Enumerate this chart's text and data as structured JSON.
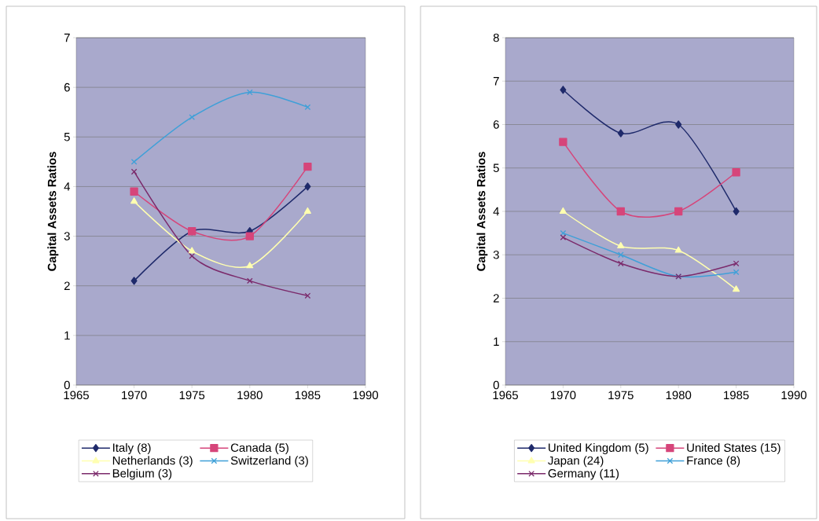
{
  "chart_data": [
    {
      "type": "line",
      "ylabel": "Capital Assets Ratios",
      "x": [
        1970,
        1975,
        1980,
        1985
      ],
      "xlim": [
        1965,
        1990
      ],
      "xticks": [
        1965,
        1970,
        1975,
        1980,
        1985,
        1990
      ],
      "ylim": [
        0,
        7
      ],
      "yticks": [
        0,
        1,
        2,
        3,
        4,
        5,
        6,
        7
      ],
      "grid": "y",
      "legend": "bottom",
      "line_style": "solid",
      "series": [
        {
          "name": "Italy (8)",
          "color": "#1f2a6b",
          "marker": "diamond",
          "values": [
            2.1,
            3.1,
            3.1,
            4.0
          ]
        },
        {
          "name": "Canada (5)",
          "color": "#d6457a",
          "marker": "square",
          "values": [
            3.9,
            3.1,
            3.0,
            4.4
          ]
        },
        {
          "name": "Netherlands (3)",
          "color": "#ffffb0",
          "marker": "triangle",
          "values": [
            3.7,
            2.7,
            2.4,
            3.5
          ]
        },
        {
          "name": "Switzerland (3)",
          "color": "#3fa0d8",
          "marker": "cross",
          "values": [
            4.5,
            5.4,
            5.9,
            5.6
          ]
        },
        {
          "name": "Belgium (3)",
          "color": "#7b2a6b",
          "marker": "cross",
          "values": [
            4.3,
            2.6,
            2.1,
            1.8
          ]
        }
      ]
    },
    {
      "type": "line",
      "ylabel": "Capital Assets Ratios",
      "x": [
        1970,
        1975,
        1980,
        1985
      ],
      "xlim": [
        1965,
        1990
      ],
      "xticks": [
        1965,
        1970,
        1975,
        1980,
        1985,
        1990
      ],
      "ylim": [
        0,
        8
      ],
      "yticks": [
        0,
        1,
        2,
        3,
        4,
        5,
        6,
        7,
        8
      ],
      "grid": "y",
      "legend": "bottom",
      "line_style": "solid",
      "series": [
        {
          "name": "United Kingdom (5)",
          "color": "#1f2a6b",
          "marker": "diamond",
          "values": [
            6.8,
            5.8,
            6.0,
            4.0
          ]
        },
        {
          "name": "United States (15)",
          "color": "#d6457a",
          "marker": "square",
          "values": [
            5.6,
            4.0,
            4.0,
            4.9
          ]
        },
        {
          "name": "Japan (24)",
          "color": "#ffffb0",
          "marker": "triangle",
          "values": [
            4.0,
            3.2,
            3.1,
            2.2
          ]
        },
        {
          "name": "France (8)",
          "color": "#3fa0d8",
          "marker": "cross",
          "values": [
            3.5,
            3.0,
            2.5,
            2.6
          ]
        },
        {
          "name": "Germany (11)",
          "color": "#7b2a6b",
          "marker": "cross",
          "values": [
            3.4,
            2.8,
            2.5,
            2.8
          ]
        }
      ]
    }
  ]
}
